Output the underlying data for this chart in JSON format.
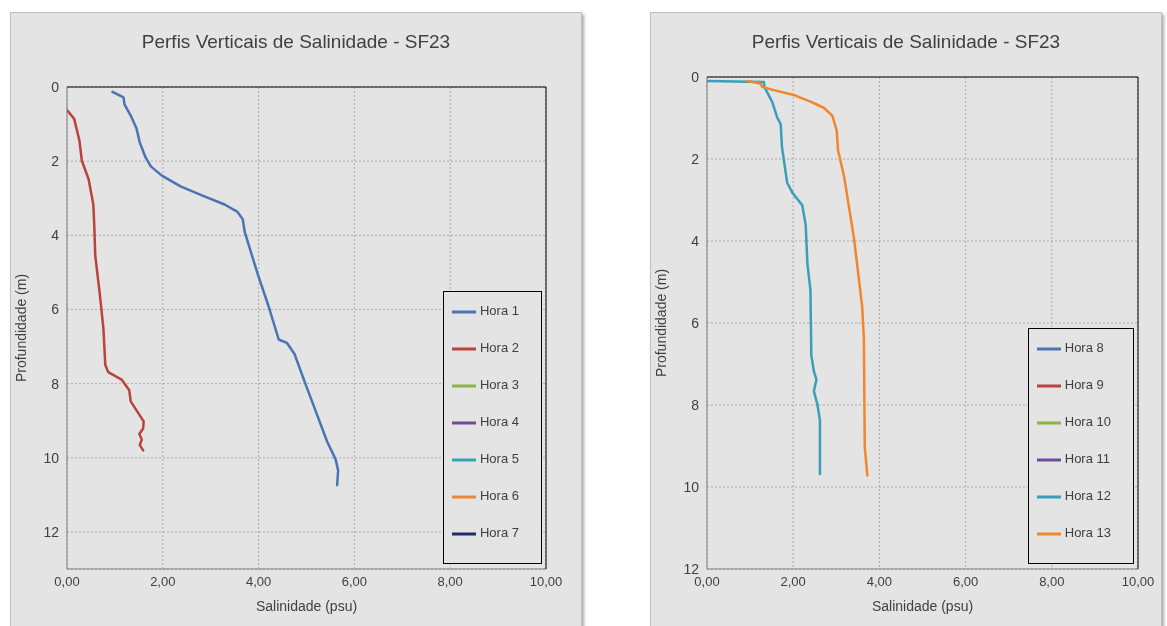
{
  "chart_data": [
    {
      "type": "line",
      "title": "Perfis Verticais de Salinidade - SF23",
      "xlabel": "Salinidade (psu)",
      "ylabel": "Profundidade (m)",
      "xlim": [
        0,
        10
      ],
      "xticks": [
        {
          "value": 0,
          "label": "0,00"
        },
        {
          "value": 2,
          "label": "2,00"
        },
        {
          "value": 4,
          "label": "4,00"
        },
        {
          "value": 6,
          "label": "6,00"
        },
        {
          "value": 8,
          "label": "8,00"
        },
        {
          "value": 10,
          "label": "10,00"
        }
      ],
      "ylim": [
        13,
        0
      ],
      "yticks": [
        0,
        2,
        4,
        6,
        8,
        10,
        12
      ],
      "grid": true,
      "legend": "bottom right",
      "marker": "none",
      "line_style": "solid",
      "series": [
        {
          "name": "Hora 1",
          "color": "#4a74b4",
          "x": [
            0.95,
            1.18,
            1.2,
            1.33,
            1.45,
            1.52,
            1.64,
            1.75,
            1.98,
            2.37,
            2.83,
            3.29,
            3.56,
            3.67,
            3.71,
            3.98,
            4.21,
            4.42,
            4.59,
            4.75,
            4.97,
            5.2,
            5.43,
            5.61,
            5.66,
            5.64
          ],
          "values": [
            0.13,
            0.28,
            0.47,
            0.77,
            1.11,
            1.5,
            1.9,
            2.14,
            2.39,
            2.68,
            2.93,
            3.17,
            3.37,
            3.57,
            3.91,
            5.04,
            5.92,
            6.81,
            6.9,
            7.2,
            7.98,
            8.77,
            9.56,
            10.05,
            10.34,
            10.74
          ]
        },
        {
          "name": "Hora 2",
          "color": "#b8433f",
          "x": [
            0,
            0.15,
            0.26,
            0.31,
            0.45,
            0.55,
            0.57,
            0.59,
            0.68,
            0.76,
            0.8,
            0.86,
            1.14,
            1.3,
            1.33,
            1.6,
            1.59,
            1.51,
            1.56,
            1.52,
            1.59
          ],
          "values": [
            0.62,
            0.86,
            1.45,
            1.99,
            2.48,
            3.17,
            3.76,
            4.55,
            5.53,
            6.51,
            7.5,
            7.69,
            7.89,
            8.18,
            8.48,
            9.02,
            9.21,
            9.36,
            9.51,
            9.66,
            9.8
          ]
        },
        {
          "name": "Hora 3",
          "color": "#8cb248"
        },
        {
          "name": "Hora 4",
          "color": "#6e4c9c"
        },
        {
          "name": "Hora 5",
          "color": "#3a9fb8"
        },
        {
          "name": "Hora 6",
          "color": "#f0862e"
        },
        {
          "name": "Hora 7",
          "color": "#1c2f5e"
        }
      ]
    },
    {
      "type": "line",
      "title": "Perfis Verticais de Salinidade - SF23",
      "xlabel": "Salinidade (psu)",
      "ylabel": "Profundidade (m)",
      "xlim": [
        0,
        10
      ],
      "xticks": [
        {
          "value": 0,
          "label": "0,00"
        },
        {
          "value": 2,
          "label": "2,00"
        },
        {
          "value": 4,
          "label": "4,00"
        },
        {
          "value": 6,
          "label": "6,00"
        },
        {
          "value": 8,
          "label": "8,00"
        },
        {
          "value": 10,
          "label": "10,00"
        }
      ],
      "ylim": [
        12,
        0
      ],
      "yticks": [
        0,
        2,
        4,
        6,
        8,
        10,
        12
      ],
      "grid": true,
      "legend": "bottom right",
      "marker": "none",
      "line_style": "solid",
      "series": [
        {
          "name": "Hora 8",
          "color": "#4a74b4"
        },
        {
          "name": "Hora 9",
          "color": "#b8433f"
        },
        {
          "name": "Hora 10",
          "color": "#8cb248"
        },
        {
          "name": "Hora 11",
          "color": "#6e4c9c"
        },
        {
          "name": "Hora 12",
          "color": "#3a9fb8",
          "x": [
            0,
            1.32,
            1.33,
            1.51,
            1.63,
            1.71,
            1.74,
            1.86,
            1.98,
            2.21,
            2.29,
            2.33,
            2.4,
            2.42,
            2.48,
            2.54,
            2.48,
            2.56,
            2.62,
            2.62
          ],
          "values": [
            0.1,
            0.12,
            0.24,
            0.6,
            0.99,
            1.15,
            1.71,
            2.58,
            2.82,
            3.13,
            3.61,
            4.56,
            5.2,
            6.79,
            7.18,
            7.38,
            7.66,
            7.98,
            8.37,
            9.68
          ]
        },
        {
          "name": "Hora 13",
          "color": "#f0862e",
          "x": [
            0.93,
            1.24,
            1.28,
            1.55,
            2.02,
            2.4,
            2.71,
            2.91,
            3.01,
            3.04,
            3.18,
            3.41,
            3.6,
            3.64,
            3.66,
            3.72
          ],
          "values": [
            0.1,
            0.16,
            0.24,
            0.32,
            0.44,
            0.6,
            0.75,
            0.95,
            1.31,
            1.79,
            2.42,
            3.93,
            5.6,
            6.39,
            9.01,
            9.72
          ]
        }
      ]
    }
  ]
}
